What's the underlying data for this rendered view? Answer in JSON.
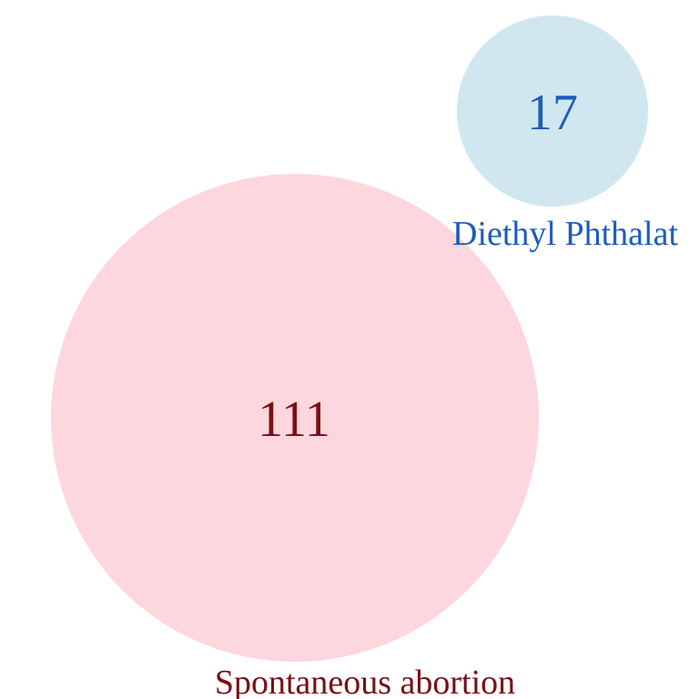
{
  "sets": [
    {
      "id": "spontaneous-abortion",
      "label": "Spontaneous abortion",
      "count": "111",
      "fill": "#fcd7de",
      "text_color": "#7a0f16"
    },
    {
      "id": "diethyl-phthalate",
      "label": "Diethyl Phthalat",
      "count": "17",
      "fill": "#d1e7ef",
      "text_color": "#1d5cba"
    }
  ]
}
